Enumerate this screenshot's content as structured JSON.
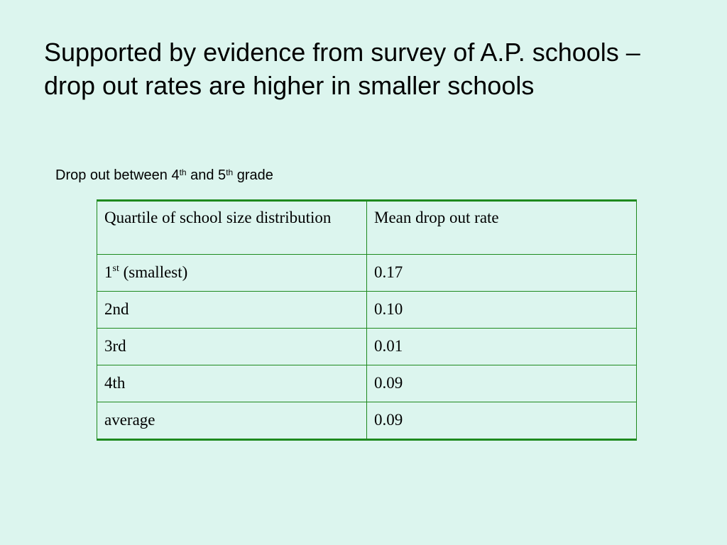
{
  "slide": {
    "title": "Supported by evidence from survey of A.P. schools – drop out rates are higher in smaller schools",
    "subtitle": {
      "text_1": "Drop out between 4",
      "sup_1": "th",
      "text_2": " and 5",
      "sup_2": "th",
      "text_3": " grade"
    }
  },
  "table": {
    "headers": [
      "Quartile of school size distribution",
      "Mean  drop out rate"
    ],
    "rows": [
      {
        "quartile": "1",
        "quartile_sup": "st",
        "quartile_rest": " (smallest)",
        "rate": "0.17"
      },
      {
        "quartile": "2nd",
        "rate": "0.10"
      },
      {
        "quartile": "3rd",
        "rate": "0.01"
      },
      {
        "quartile": "4th",
        "rate": "0.09"
      },
      {
        "quartile": "average",
        "rate": "0.09"
      }
    ]
  },
  "colors": {
    "background": "#dcf5ee",
    "table_border": "#1e8a1e"
  }
}
